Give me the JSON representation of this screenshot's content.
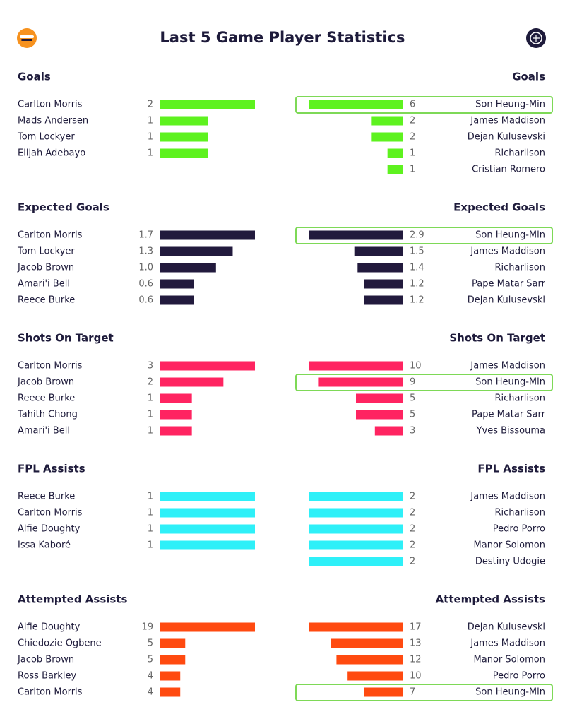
{
  "header": {
    "title": "Last 5 Game Player Statistics"
  },
  "chart_data": [
    {
      "type": "bar",
      "title": "Goals",
      "color": "#5ef21f",
      "categories": [
        "Carlton Morris",
        "Mads Andersen",
        "Tom Lockyer",
        "Elijah Adebayo"
      ],
      "values": [
        2,
        1,
        1,
        1
      ]
    },
    {
      "type": "bar",
      "title": "Goals",
      "color": "#5ef21f",
      "categories": [
        "Son Heung-Min",
        "James Maddison",
        "Dejan Kulusevski",
        "Richarlison",
        "Cristian Romero"
      ],
      "values": [
        6,
        2,
        2,
        1,
        1
      ],
      "highlight": 0
    },
    {
      "type": "bar",
      "title": "Expected Goals",
      "color": "#221a3d",
      "categories": [
        "Carlton Morris",
        "Tom Lockyer",
        "Jacob Brown",
        "Amari'i Bell",
        "Reece Burke"
      ],
      "values": [
        1.7,
        1.3,
        1.0,
        0.6,
        0.6
      ],
      "value_labels": [
        "1.7",
        "1.3",
        "1.0",
        "0.6",
        "0.6"
      ]
    },
    {
      "type": "bar",
      "title": "Expected Goals",
      "color": "#221a3d",
      "categories": [
        "Son Heung-Min",
        "James Maddison",
        "Richarlison",
        "Pape Matar Sarr",
        "Dejan Kulusevski"
      ],
      "values": [
        2.9,
        1.5,
        1.4,
        1.2,
        1.2
      ],
      "highlight": 0
    },
    {
      "type": "bar",
      "title": "Shots On Target",
      "color": "#ff2461",
      "categories": [
        "Carlton Morris",
        "Jacob Brown",
        "Reece Burke",
        "Tahith Chong",
        "Amari'i Bell"
      ],
      "values": [
        3,
        2,
        1,
        1,
        1
      ]
    },
    {
      "type": "bar",
      "title": "Shots On Target",
      "color": "#ff2461",
      "categories": [
        "James Maddison",
        "Son Heung-Min",
        "Richarlison",
        "Pape Matar Sarr",
        "Yves Bissouma"
      ],
      "values": [
        10,
        9,
        5,
        5,
        3
      ],
      "highlight": 1
    },
    {
      "type": "bar",
      "title": "FPL Assists",
      "color": "#2ef0f8",
      "categories": [
        "Reece Burke",
        "Carlton Morris",
        "Alfie Doughty",
        "Issa Kaboré"
      ],
      "values": [
        1,
        1,
        1,
        1
      ]
    },
    {
      "type": "bar",
      "title": "FPL Assists",
      "color": "#2ef0f8",
      "categories": [
        "James Maddison",
        "Richarlison",
        "Pedro Porro",
        "Manor Solomon",
        "Destiny Udogie"
      ],
      "values": [
        2,
        2,
        2,
        2,
        2
      ]
    },
    {
      "type": "bar",
      "title": "Attempted Assists",
      "color": "#ff4a10",
      "categories": [
        "Alfie Doughty",
        "Chiedozie Ogbene",
        "Jacob Brown",
        "Ross Barkley",
        "Carlton Morris"
      ],
      "values": [
        19,
        5,
        5,
        4,
        4
      ]
    },
    {
      "type": "bar",
      "title": "Attempted Assists",
      "color": "#ff4a10",
      "categories": [
        "Dejan Kulusevski",
        "James Maddison",
        "Manor Solomon",
        "Pedro Porro",
        "Son Heung-Min"
      ],
      "values": [
        17,
        13,
        12,
        10,
        7
      ],
      "highlight": 4
    }
  ]
}
